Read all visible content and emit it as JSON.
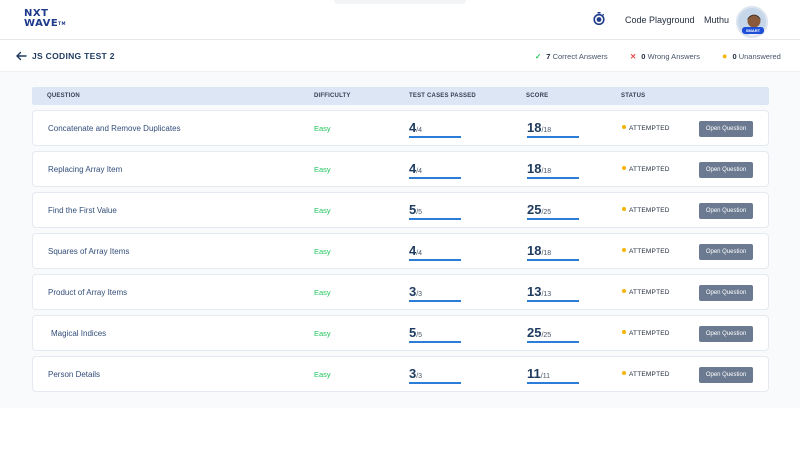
{
  "header": {
    "logo_line1": "NXT",
    "logo_line2": "WAVE",
    "logo_tm": "TM",
    "code_playground": "Code Playground",
    "user_name": "Muthu",
    "avatar_badge": "SMART"
  },
  "test": {
    "title": "JS CODING TEST 2",
    "correct_count": "7",
    "correct_label": "Correct Answers",
    "wrong_count": "0",
    "wrong_label": "Wrong Answers",
    "unanswered_count": "0",
    "unanswered_label": "Unanswered"
  },
  "table": {
    "columns": {
      "question": "QUESTION",
      "difficulty": "DIFFICULTY",
      "tests": "TEST CASES PASSED",
      "score": "SCORE",
      "status": "STATUS"
    },
    "button_label": "Open Question",
    "rows": [
      {
        "question": "Concatenate and Remove Duplicates",
        "difficulty": "Easy",
        "tests_passed": "4",
        "tests_total": "/4",
        "score": "18",
        "score_total": "/18",
        "status": "ATTEMPTED"
      },
      {
        "question": "Replacing Array Item",
        "difficulty": "Easy",
        "tests_passed": "4",
        "tests_total": "/4",
        "score": "18",
        "score_total": "/18",
        "status": "ATTEMPTED"
      },
      {
        "question": "Find the First Value",
        "difficulty": "Easy",
        "tests_passed": "5",
        "tests_total": "/5",
        "score": "25",
        "score_total": "/25",
        "status": "ATTEMPTED"
      },
      {
        "question": "Squares of Array Items",
        "difficulty": "Easy",
        "tests_passed": "4",
        "tests_total": "/4",
        "score": "18",
        "score_total": "/18",
        "status": "ATTEMPTED"
      },
      {
        "question": "Product of Array Items",
        "difficulty": "Easy",
        "tests_passed": "3",
        "tests_total": "/3",
        "score": "13",
        "score_total": "/13",
        "status": "ATTEMPTED"
      },
      {
        "question": "Magical Indices",
        "difficulty": "Easy",
        "tests_passed": "5",
        "tests_total": "/5",
        "score": "25",
        "score_total": "/25",
        "status": "ATTEMPTED"
      },
      {
        "question": "Person Details",
        "difficulty": "Easy",
        "tests_passed": "3",
        "tests_total": "/3",
        "score": "11",
        "score_total": "/11",
        "status": "ATTEMPTED"
      }
    ]
  },
  "colors": {
    "brand": "#1e3a8a",
    "easy": "#22c55e",
    "progress": "#2b7dd8",
    "attempted_dot": "#f5b400",
    "button": "#6b7a90"
  },
  "icons": {
    "timer": "stopwatch-icon",
    "back": "arrow-left-icon",
    "correct": "check-icon",
    "wrong": "cross-icon",
    "unanswered": "dot-icon"
  }
}
